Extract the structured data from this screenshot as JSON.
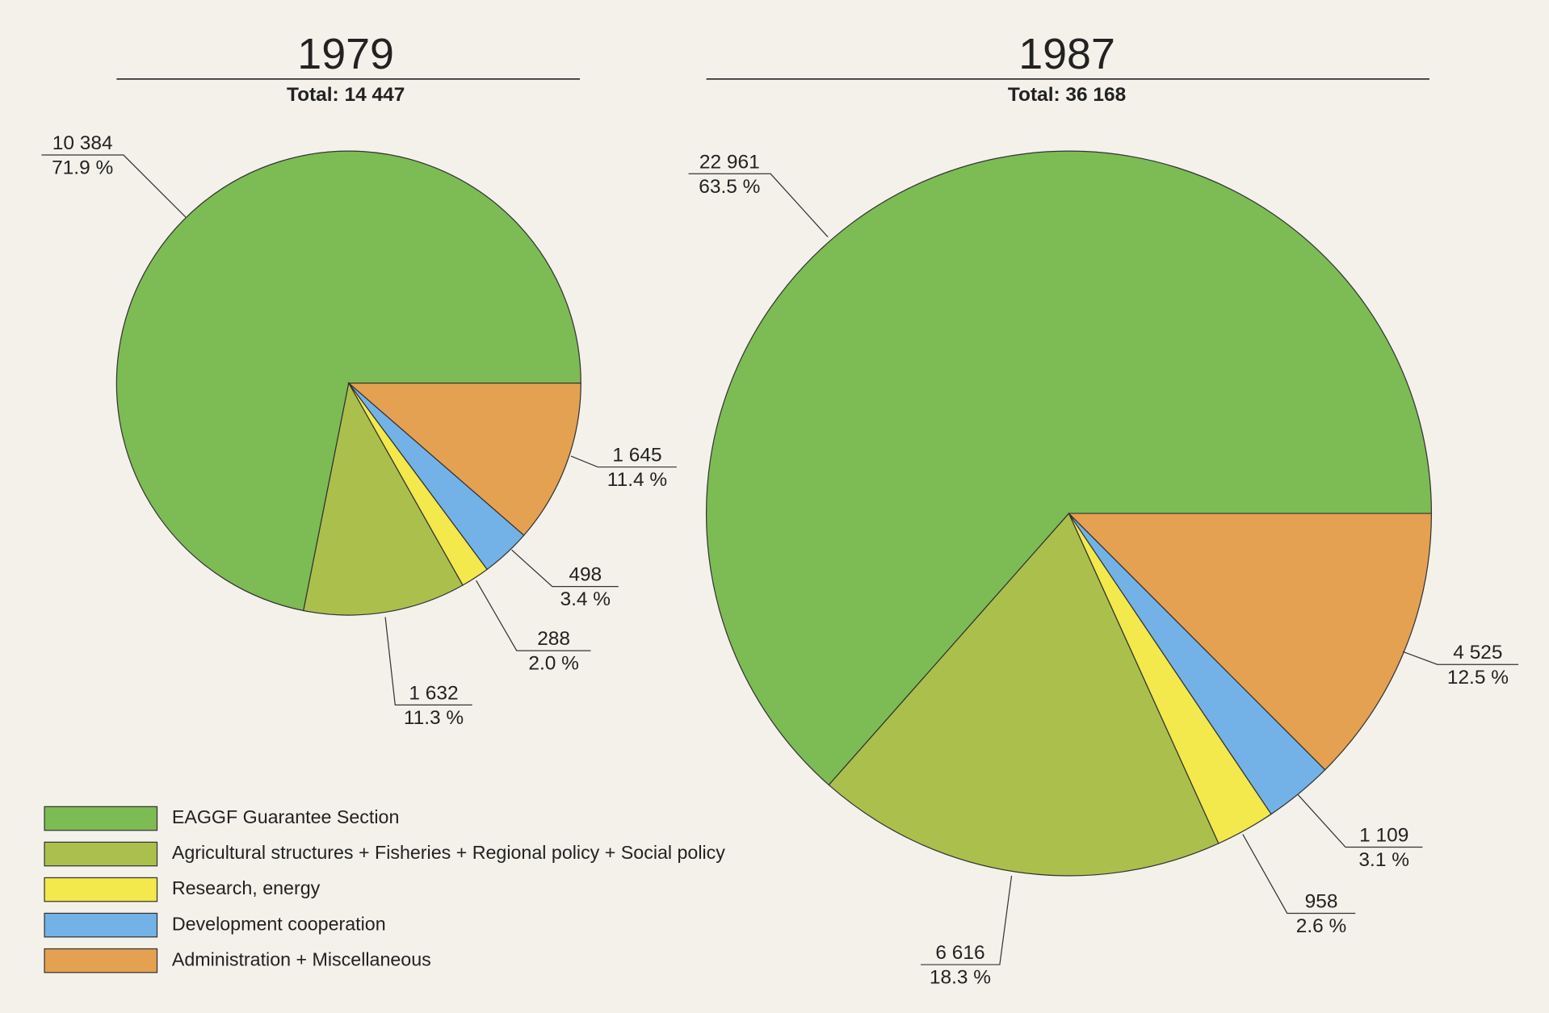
{
  "chart_data": [
    {
      "type": "pie",
      "title": "1979",
      "subtitle": "Total: 14 447",
      "categories": [
        "EAGGF Guarantee Section",
        "Agricultural structures + Fisheries + Regional policy + Social policy",
        "Research, energy",
        "Development cooperation",
        "Administration + Miscellaneous"
      ],
      "colors": [
        "#7dbb55",
        "#abc04c",
        "#f3e84c",
        "#73b2e6",
        "#e4a152"
      ],
      "values": [
        10384,
        1632,
        288,
        498,
        1645
      ],
      "value_labels": [
        "10 384",
        "1 632",
        "288",
        "498",
        "1 645"
      ],
      "percent_labels": [
        "71.9 %",
        "11.3 %",
        "2.0 %",
        "3.4 %",
        "11.4 %"
      ]
    },
    {
      "type": "pie",
      "title": "1987",
      "subtitle": "Total: 36 168",
      "categories": [
        "EAGGF Guarantee Section",
        "Agricultural structures + Fisheries + Regional policy + Social policy",
        "Research, energy",
        "Development cooperation",
        "Administration + Miscellaneous"
      ],
      "colors": [
        "#7dbb55",
        "#abc04c",
        "#f3e84c",
        "#73b2e6",
        "#e4a152"
      ],
      "values": [
        22961,
        6616,
        958,
        1109,
        4525
      ],
      "value_labels": [
        "22 961",
        "6 616",
        "958",
        "1 109",
        "4 525"
      ],
      "percent_labels": [
        "63.5 %",
        "18.3 %",
        "2.6 %",
        "3.1 %",
        "12.5 %"
      ]
    }
  ]
}
